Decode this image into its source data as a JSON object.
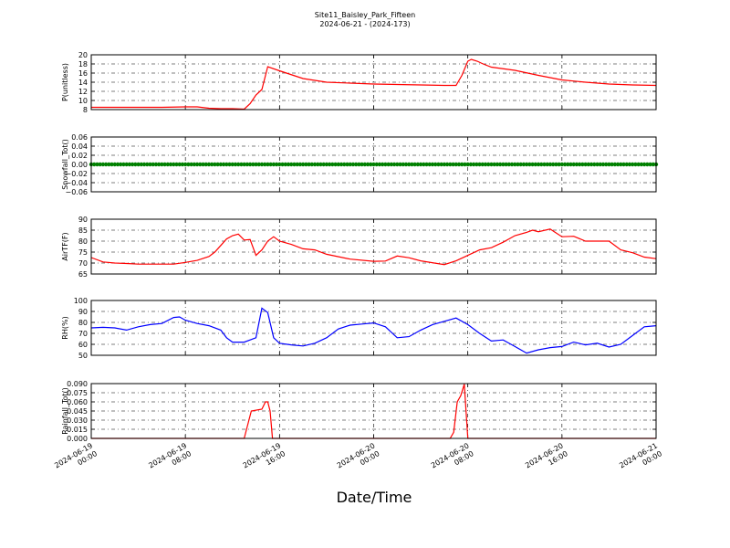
{
  "title": "Site11_Baisley_Park_Fifteen",
  "subtitle": "2024-06-21 - (2024-173)",
  "xlabel": "Date/Time",
  "colors": {
    "red": "#ff0000",
    "green": "#008000",
    "blue": "#0000ff"
  },
  "x_ticks": [
    [
      "2024-06-19",
      "00:00"
    ],
    [
      "2024-06-19",
      "08:00"
    ],
    [
      "2024-06-19",
      "16:00"
    ],
    [
      "2024-06-20",
      "00:00"
    ],
    [
      "2024-06-20",
      "08:00"
    ],
    [
      "2024-06-20",
      "16:00"
    ],
    [
      "2024-06-21",
      "00:00"
    ]
  ],
  "chart_data": [
    {
      "type": "line",
      "ylabel": "P(unitless)",
      "ylim": [
        8,
        20
      ],
      "yticks": [
        "8",
        "10",
        "12",
        "14",
        "16",
        "18",
        "20"
      ],
      "grid": true,
      "series": [
        {
          "color": "#ff0000",
          "x": [
            0,
            2,
            4,
            6,
            8,
            9,
            10,
            11,
            12,
            13,
            13.5,
            14,
            14.5,
            15,
            16,
            18,
            20,
            22,
            24,
            26,
            28,
            30,
            31,
            31.5,
            32,
            32.3,
            32.8,
            33.3,
            34,
            36,
            38,
            40,
            42,
            44,
            46,
            48
          ],
          "y": [
            8.5,
            8.5,
            8.5,
            8.5,
            8.6,
            8.6,
            8.3,
            8.2,
            8.2,
            8.1,
            9.3,
            11.2,
            12.4,
            17.4,
            16.5,
            14.8,
            14.0,
            13.8,
            13.6,
            13.5,
            13.4,
            13.3,
            13.3,
            15.5,
            18.6,
            19.0,
            18.6,
            18.0,
            17.3,
            16.6,
            15.5,
            14.5,
            14.0,
            13.6,
            13.4,
            13.3
          ]
        }
      ]
    },
    {
      "type": "scatter",
      "ylabel": "Snowfall_Tot()",
      "ylim": [
        -0.06,
        0.06
      ],
      "yticks": [
        "−0.06",
        "−0.04",
        "−0.02",
        "0.00",
        "0.02",
        "0.04",
        "0.06"
      ],
      "grid": true,
      "series": [
        {
          "color": "#008000",
          "x": [
            0,
            48
          ],
          "y": [
            0,
            0
          ]
        }
      ]
    },
    {
      "type": "line",
      "ylabel": "AirTF(F)",
      "ylim": [
        65,
        90
      ],
      "yticks": [
        "65",
        "70",
        "75",
        "80",
        "85",
        "90"
      ],
      "grid": true,
      "series": [
        {
          "color": "#ff0000",
          "x": [
            0,
            1,
            2,
            3,
            4,
            5,
            6,
            7,
            8,
            9,
            10,
            10.5,
            11,
            11.5,
            12,
            12.5,
            13,
            13.5,
            14,
            14.5,
            15,
            15.5,
            16,
            17,
            18,
            19,
            20,
            22,
            24,
            25,
            26,
            27,
            28,
            30,
            31,
            32,
            33,
            34,
            35,
            35.5,
            36,
            37,
            37.5,
            38,
            39,
            40,
            41,
            42,
            44,
            45,
            46,
            47,
            48
          ],
          "y": [
            72.5,
            70.5,
            70,
            69.8,
            69.5,
            69.5,
            69.5,
            69.5,
            70.3,
            71.2,
            73,
            75,
            78,
            81,
            82.5,
            83.2,
            80.5,
            80.7,
            73.5,
            76,
            80,
            82,
            80,
            78.5,
            76.5,
            76,
            74,
            71.8,
            70.8,
            70.9,
            73.2,
            72.4,
            71,
            69.3,
            71,
            73.5,
            76,
            77,
            79.5,
            81,
            82.5,
            84,
            85,
            84.3,
            85.5,
            82,
            82.2,
            80,
            80,
            76,
            74.7,
            72.7,
            72
          ]
        }
      ]
    },
    {
      "type": "line",
      "ylabel": "RH(%)",
      "ylim": [
        50,
        100
      ],
      "yticks": [
        "50",
        "60",
        "70",
        "80",
        "90",
        "100"
      ],
      "grid": true,
      "series": [
        {
          "color": "#0000ff",
          "x": [
            0,
            1,
            2,
            3,
            4,
            5,
            6,
            7,
            7.5,
            8,
            9,
            10,
            11,
            11.5,
            12,
            13,
            13.5,
            14,
            14.5,
            15,
            15.5,
            16,
            17,
            18,
            19,
            20,
            21,
            22,
            23,
            24,
            25,
            26,
            27,
            28,
            29,
            30,
            31,
            32,
            33,
            34,
            35,
            36,
            37,
            38,
            39,
            40,
            41,
            42,
            43,
            44,
            45,
            46,
            47,
            48
          ],
          "y": [
            75,
            75.5,
            75,
            73,
            76,
            78,
            79,
            84.5,
            85,
            82,
            79,
            77,
            73,
            66,
            62,
            62,
            64,
            66,
            93,
            89,
            66,
            61,
            59.5,
            58.5,
            61,
            66,
            74,
            77.5,
            78.5,
            79.5,
            76,
            66,
            67,
            73,
            78,
            81,
            84,
            78,
            70,
            63,
            64,
            58,
            52,
            55,
            57,
            58,
            62,
            59.5,
            61,
            57.5,
            60,
            68,
            76,
            77
          ]
        }
      ]
    },
    {
      "type": "line",
      "ylabel": "Rainfall_Tot()",
      "ylim": [
        0,
        0.09
      ],
      "yticks": [
        "0.000",
        "0.015",
        "0.030",
        "0.045",
        "0.060",
        "0.075",
        "0.090"
      ],
      "grid": true,
      "series": [
        {
          "color": "#ff0000",
          "x": [
            0,
            13,
            13.2,
            13.6,
            14.5,
            14.8,
            15,
            15.2,
            15.4,
            30.5,
            30.8,
            31.1,
            31.4,
            31.7,
            32,
            48
          ],
          "y": [
            0,
            0,
            0.015,
            0.045,
            0.048,
            0.06,
            0.06,
            0.045,
            0,
            0,
            0.01,
            0.06,
            0.07,
            0.089,
            0,
            0
          ]
        }
      ]
    }
  ]
}
